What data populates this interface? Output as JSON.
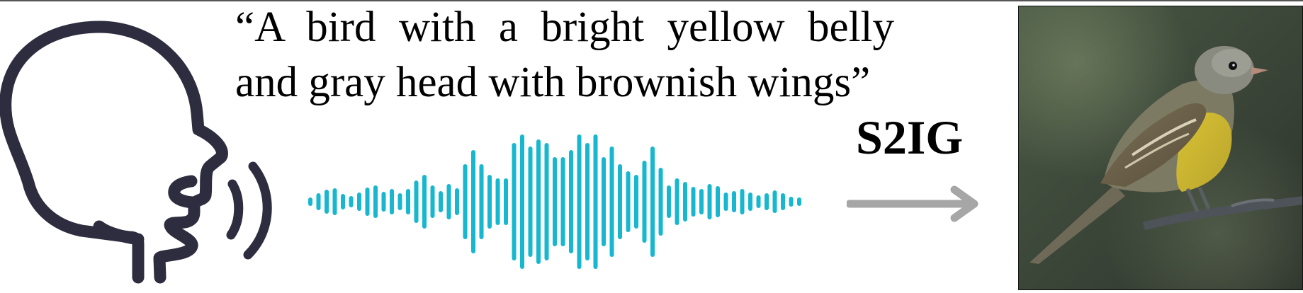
{
  "caption": {
    "line1": "“A bird with a bright yellow belly",
    "line2": "and gray head with brownish wings”"
  },
  "model_label": "S2IG",
  "icons": {
    "speaker": "speaking-head-icon",
    "waveform": "sound-waveform-icon",
    "arrow": "right-arrow-icon",
    "photo": "bird-photo"
  },
  "colors": {
    "waveform": "#17B8CF",
    "head_outline": "#2E2D3F",
    "arrow": "#A6A6A6"
  }
}
